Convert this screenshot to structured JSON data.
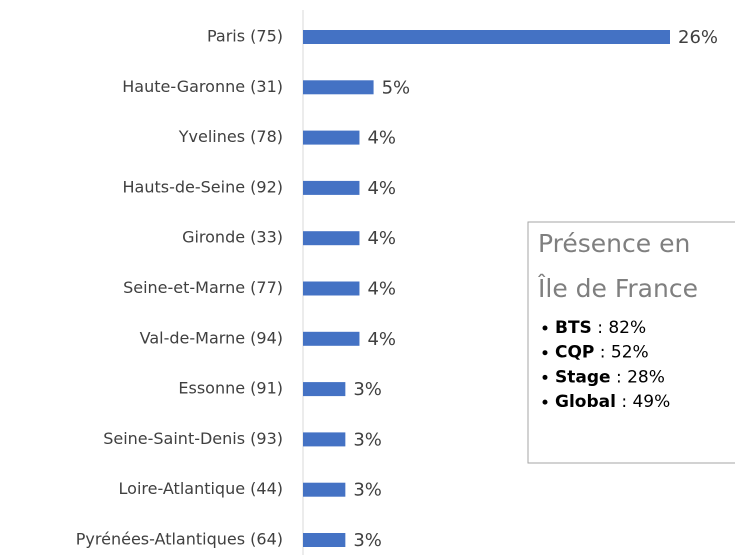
{
  "chart_data": {
    "type": "bar",
    "orientation": "horizontal",
    "categories": [
      "Paris (75)",
      "Haute-Garonne (31)",
      "Yvelines (78)",
      "Hauts-de-Seine (92)",
      "Gironde (33)",
      "Seine-et-Marne (77)",
      "Val-de-Marne (94)",
      "Essonne (91)",
      "Seine-Saint-Denis (93)",
      "Loire-Atlantique (44)",
      "Pyrénées-Atlantiques (64)"
    ],
    "values": [
      26,
      5,
      4,
      4,
      4,
      4,
      4,
      3,
      3,
      3,
      3
    ],
    "value_labels": [
      "26%",
      "5%",
      "4%",
      "4%",
      "4%",
      "4%",
      "4%",
      "3%",
      "3%",
      "3%",
      "3%"
    ],
    "color": "#4472c4",
    "annotation": {
      "title": [
        "Présence en",
        "Île de France"
      ],
      "items": [
        {
          "label": "BTS",
          "text": " : 82%"
        },
        {
          "label": "CQP",
          "text": " : 52%"
        },
        {
          "label": "Stage",
          "text": " : 28%"
        },
        {
          "label": "Global",
          "text": " : 49%"
        }
      ]
    }
  }
}
